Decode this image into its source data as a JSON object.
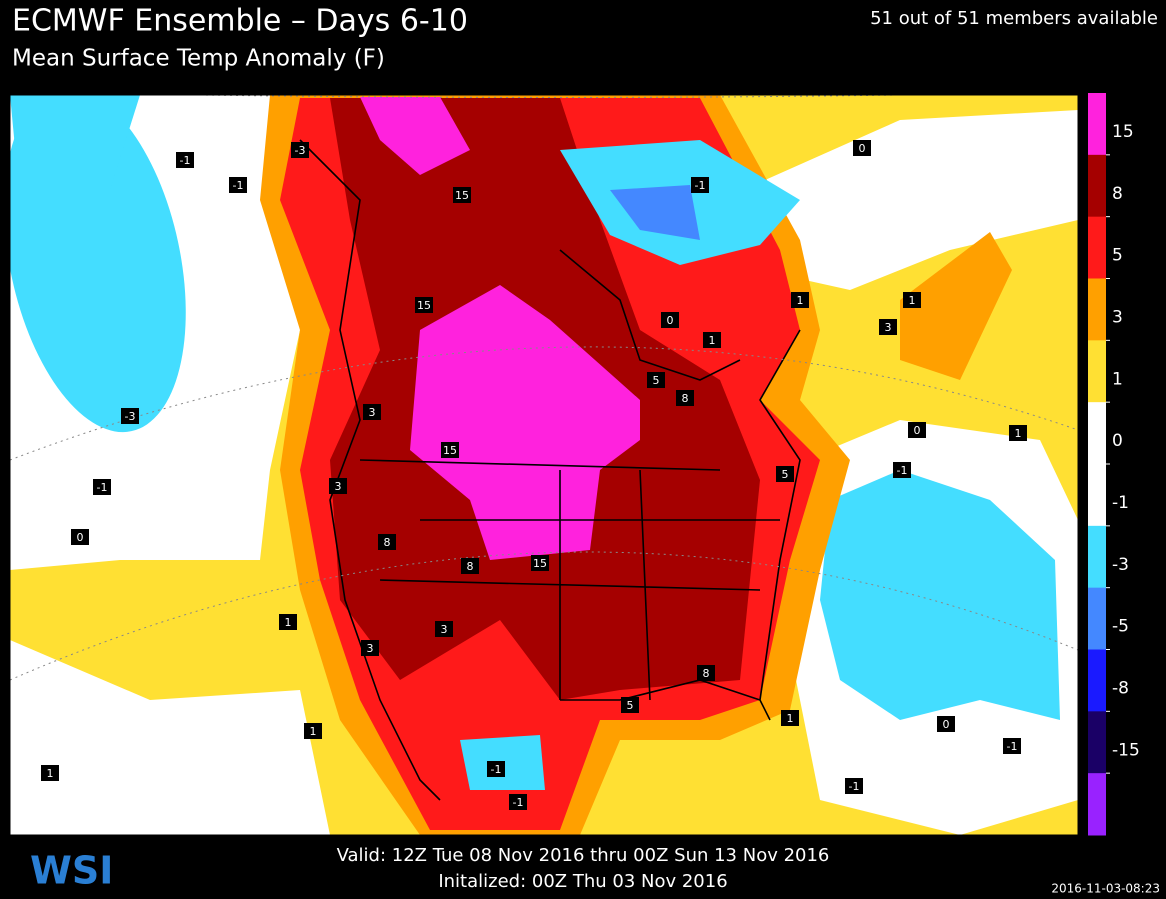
{
  "header": {
    "title": "ECMWF Ensemble – Days 6-10",
    "subtitle": "Mean Surface Temp Anomaly (F)",
    "members": "51 out of 51 members available"
  },
  "colorbar": {
    "levels": [
      15,
      8,
      5,
      3,
      1,
      0,
      -1,
      -3,
      -5,
      -8,
      -15
    ],
    "colors": [
      "#ff22dd",
      "#a50000",
      "#ff1a1a",
      "#ffa000",
      "#ffe033",
      "#ffffff",
      "#ffffff",
      "#44ddff",
      "#4488ff",
      "#1a1aff",
      "#1a0066",
      "#9922ff"
    ]
  },
  "contour_labels": [
    -1,
    -1,
    -3,
    -1,
    0,
    1,
    1,
    1,
    0,
    1,
    3,
    0,
    1,
    -1,
    -1,
    0,
    -1,
    15,
    15,
    15,
    15,
    8,
    8,
    8,
    5,
    5,
    8,
    5,
    3,
    3,
    3,
    3,
    1,
    0,
    -1,
    -1,
    1,
    1,
    -3,
    -1
  ],
  "footer": {
    "valid": "Valid: 12Z Tue 08 Nov 2016 thru 00Z Sun 13 Nov 2016",
    "initialized": "Initalized: 00Z Thu 03 Nov 2016",
    "timestamp": "2016-11-03-08:23",
    "logo": "WSI"
  }
}
